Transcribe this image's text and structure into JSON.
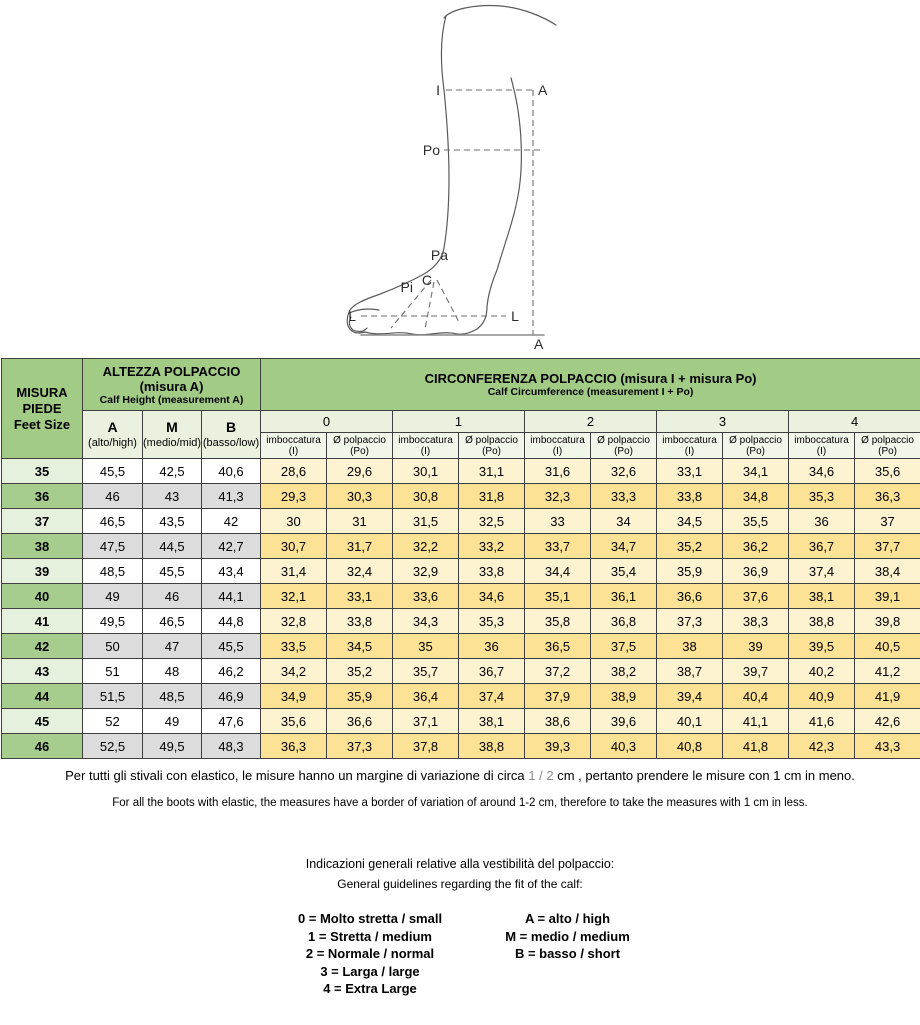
{
  "diagram": {
    "labels": {
      "i": "I",
      "a_top": "A",
      "po": "Po",
      "pa": "Pa",
      "c": "C",
      "pi": "Pi",
      "l_left": "L",
      "l_right": "L",
      "a_bottom": "A"
    }
  },
  "table": {
    "feet_size": {
      "l1": "MISURA",
      "l2": "PIEDE",
      "l3": "Feet Size"
    },
    "calf_height": {
      "title": "ALTEZZA POLPACCIO",
      "title2": "(misura A)",
      "subtitle": "Calf Height (measurement A)",
      "cols": [
        {
          "letter": "A",
          "label": "(alto/high)"
        },
        {
          "letter": "M",
          "label": "(medio/mid)"
        },
        {
          "letter": "B",
          "label": "(basso/low)"
        }
      ]
    },
    "circumference": {
      "title": "CIRCONFERENZA POLPACCIO  (misura I + misura Po)",
      "subtitle": "Calf Circumference (measurement I + Po)",
      "groups": [
        "0",
        "1",
        "2",
        "3",
        "4"
      ],
      "sub": [
        {
          "l1": "imboccatura",
          "l2": "(I)"
        },
        {
          "l1": "Ø polpaccio",
          "l2": "(Po)"
        }
      ]
    },
    "rows": [
      {
        "size": "35",
        "height": [
          "45,5",
          "42,5",
          "40,6"
        ],
        "circ": [
          "28,6",
          "29,6",
          "30,1",
          "31,1",
          "31,6",
          "32,6",
          "33,1",
          "34,1",
          "34,6",
          "35,6"
        ]
      },
      {
        "size": "36",
        "height": [
          "46",
          "43",
          "41,3"
        ],
        "circ": [
          "29,3",
          "30,3",
          "30,8",
          "31,8",
          "32,3",
          "33,3",
          "33,8",
          "34,8",
          "35,3",
          "36,3"
        ]
      },
      {
        "size": "37",
        "height": [
          "46,5",
          "43,5",
          "42"
        ],
        "circ": [
          "30",
          "31",
          "31,5",
          "32,5",
          "33",
          "34",
          "34,5",
          "35,5",
          "36",
          "37"
        ]
      },
      {
        "size": "38",
        "height": [
          "47,5",
          "44,5",
          "42,7"
        ],
        "circ": [
          "30,7",
          "31,7",
          "32,2",
          "33,2",
          "33,7",
          "34,7",
          "35,2",
          "36,2",
          "36,7",
          "37,7"
        ]
      },
      {
        "size": "39",
        "height": [
          "48,5",
          "45,5",
          "43,4"
        ],
        "circ": [
          "31,4",
          "32,4",
          "32,9",
          "33,8",
          "34,4",
          "35,4",
          "35,9",
          "36,9",
          "37,4",
          "38,4"
        ]
      },
      {
        "size": "40",
        "height": [
          "49",
          "46",
          "44,1"
        ],
        "circ": [
          "32,1",
          "33,1",
          "33,6",
          "34,6",
          "35,1",
          "36,1",
          "36,6",
          "37,6",
          "38,1",
          "39,1"
        ]
      },
      {
        "size": "41",
        "height": [
          "49,5",
          "46,5",
          "44,8"
        ],
        "circ": [
          "32,8",
          "33,8",
          "34,3",
          "35,3",
          "35,8",
          "36,8",
          "37,3",
          "38,3",
          "38,8",
          "39,8"
        ]
      },
      {
        "size": "42",
        "height": [
          "50",
          "47",
          "45,5"
        ],
        "circ": [
          "33,5",
          "34,5",
          "35",
          "36",
          "36,5",
          "37,5",
          "38",
          "39",
          "39,5",
          "40,5"
        ]
      },
      {
        "size": "43",
        "height": [
          "51",
          "48",
          "46,2"
        ],
        "circ": [
          "34,2",
          "35,2",
          "35,7",
          "36,7",
          "37,2",
          "38,2",
          "38,7",
          "39,7",
          "40,2",
          "41,2"
        ]
      },
      {
        "size": "44",
        "height": [
          "51,5",
          "48,5",
          "46,9"
        ],
        "circ": [
          "34,9",
          "35,9",
          "36,4",
          "37,4",
          "37,9",
          "38,9",
          "39,4",
          "40,4",
          "40,9",
          "41,9"
        ]
      },
      {
        "size": "45",
        "height": [
          "52",
          "49",
          "47,6"
        ],
        "circ": [
          "35,6",
          "36,6",
          "37,1",
          "38,1",
          "38,6",
          "39,6",
          "40,1",
          "41,1",
          "41,6",
          "42,6"
        ]
      },
      {
        "size": "46",
        "height": [
          "52,5",
          "49,5",
          "48,3"
        ],
        "circ": [
          "36,3",
          "37,3",
          "37,8",
          "38,8",
          "39,3",
          "40,3",
          "40,8",
          "41,8",
          "42,3",
          "43,3"
        ]
      }
    ]
  },
  "notes": {
    "it_before": "Per tutti gli stivali con elastico, le misure hanno un margine di variazione di circa ",
    "it_range": "1 / 2",
    "it_after": " cm , pertanto prendere le misure con 1 cm in meno.",
    "en": "For all the boots with elastic, the measures have a border of variation of around 1-2 cm, therefore to take the measures with 1 cm in less."
  },
  "guidelines": {
    "it": "Indicazioni generali relative alla vestibilità del polpaccio:",
    "en": "General guidelines regarding the fit of the calf:"
  },
  "legend": {
    "left": [
      "0 = Molto stretta / small",
      "1 = Stretta / medium",
      "2 = Normale / normal",
      "3 = Larga / large",
      "4 = Extra Large"
    ],
    "right": [
      "A = alto / high",
      "M = medio / medium",
      "B = basso / short"
    ]
  },
  "colors": {
    "header_green": "#a2cb85",
    "row_green_light": "#e6f1dd",
    "row_green_dark": "#a6cd8e",
    "header_pale_green": "#eaf2df",
    "cell_gray": "#dcdcdc",
    "cell_yellow_light": "#fdf3d1",
    "cell_yellow_dark": "#fbe294",
    "border": "#3f3f3f",
    "note_muted": "#8a8a8a"
  }
}
